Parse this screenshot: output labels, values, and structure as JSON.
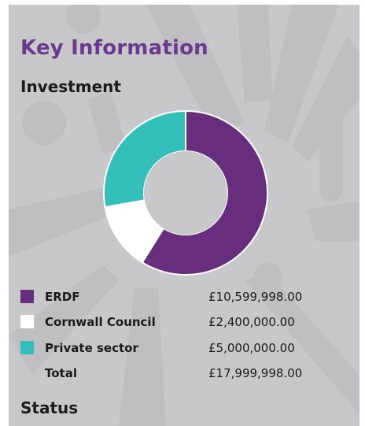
{
  "page": {
    "title": "Key Information",
    "investment_heading": "Investment",
    "status_heading": "Status"
  },
  "chart_data": {
    "type": "pie",
    "variant": "donut",
    "categories": [
      "ERDF",
      "Cornwall Council",
      "Private sector"
    ],
    "values": [
      10599998.0,
      2400000.0,
      5000000.0
    ],
    "colors": [
      "#672e7e",
      "#ffffff",
      "#34bfbb"
    ],
    "total": 17999998.0
  },
  "legend": [
    {
      "label": "ERDF",
      "value": "£10,599,998.00",
      "color": "#672e7e"
    },
    {
      "label": "Cornwall Council",
      "value": "£2,400,000.00",
      "color": "#ffffff"
    },
    {
      "label": "Private sector",
      "value": "£5,000,000.00",
      "color": "#34bfbb"
    },
    {
      "label": "Total",
      "value": "£17,999,998.00",
      "color": ""
    }
  ],
  "colors": {
    "panel_bg": "#c8c8ca",
    "accent": "#6b3a8e",
    "text": "#1b1b1b"
  }
}
